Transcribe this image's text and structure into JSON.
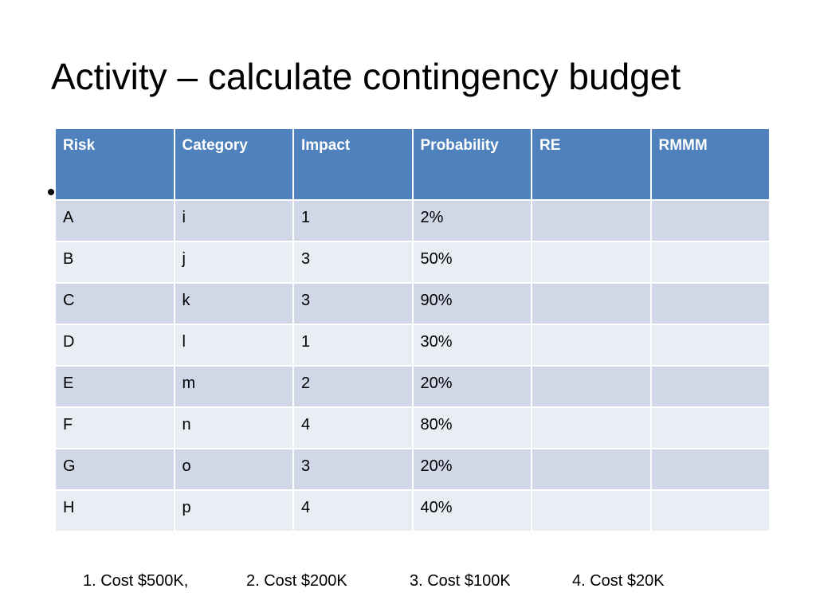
{
  "slide": {
    "title": "Activity – calculate contingency budget"
  },
  "table": {
    "headers": [
      "Risk",
      "Category",
      "Impact",
      "Probability",
      "RE",
      "RMMM"
    ],
    "rows": [
      [
        "A",
        "i",
        "1",
        "2%",
        "",
        ""
      ],
      [
        "B",
        "j",
        "3",
        "50%",
        "",
        ""
      ],
      [
        "C",
        "k",
        "3",
        "90%",
        "",
        ""
      ],
      [
        "D",
        "l",
        "1",
        "30%",
        "",
        ""
      ],
      [
        "E",
        "m",
        "2",
        "20%",
        "",
        ""
      ],
      [
        "F",
        "n",
        "4",
        "80%",
        "",
        ""
      ],
      [
        "G",
        "o",
        "3",
        "20%",
        "",
        ""
      ],
      [
        "H",
        "p",
        "4",
        "40%",
        "",
        ""
      ]
    ],
    "colors": {
      "header_bg": "#4f81bd",
      "row_band_dark": "#d0d8e8",
      "row_band_light": "#e9edf4"
    }
  },
  "costs": [
    "1. Cost $500K,",
    "2. Cost $200K",
    "3. Cost $100K",
    "4. Cost $20K"
  ]
}
